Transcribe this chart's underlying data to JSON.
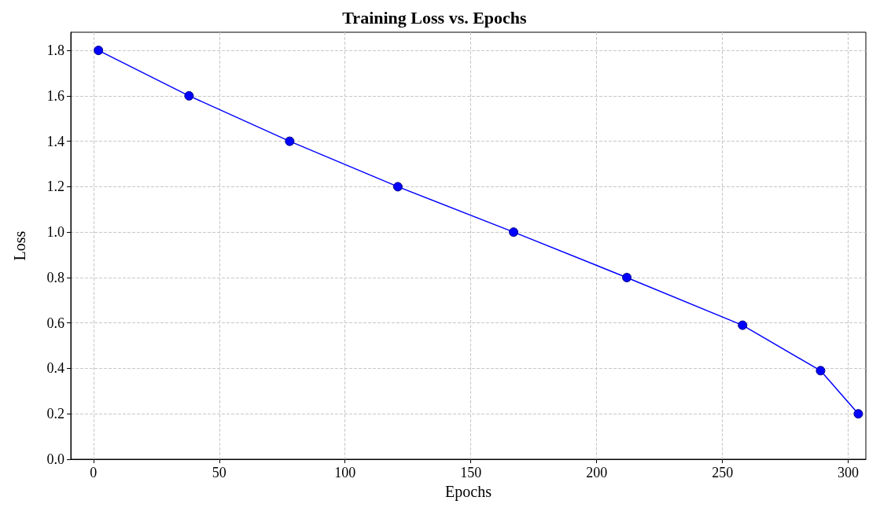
{
  "chart_data": {
    "type": "line",
    "title": "Training Loss vs. Epochs",
    "xlabel": "Epochs",
    "ylabel": "Loss",
    "x": [
      2,
      38,
      78,
      121,
      167,
      212,
      258,
      289,
      304
    ],
    "series": [
      {
        "color": "#0000ff",
        "values": [
          1.8,
          1.6,
          1.4,
          1.2,
          1.0,
          0.8,
          0.59,
          0.39,
          0.2
        ]
      }
    ],
    "xlim": [
      -9,
      307
    ],
    "xticks": [
      0,
      50,
      100,
      150,
      200,
      250,
      300
    ],
    "ylim": [
      0,
      1.88
    ],
    "yticks": [
      {
        "value": 0,
        "label": "0.0"
      },
      {
        "value": 0.2,
        "label": "0.2"
      },
      {
        "value": 0.4,
        "label": "0.4"
      },
      {
        "value": 0.6,
        "label": "0.6"
      },
      {
        "value": 0.8,
        "label": "0.8"
      },
      {
        "value": 1,
        "label": "1.0"
      },
      {
        "value": 1.2,
        "label": "1.2"
      },
      {
        "value": 1.4,
        "label": "1.4"
      },
      {
        "value": 1.6,
        "label": "1.6"
      },
      {
        "value": 1.8,
        "label": "1.8"
      }
    ],
    "grid": true,
    "marker": "circle",
    "line_style": "solid"
  }
}
